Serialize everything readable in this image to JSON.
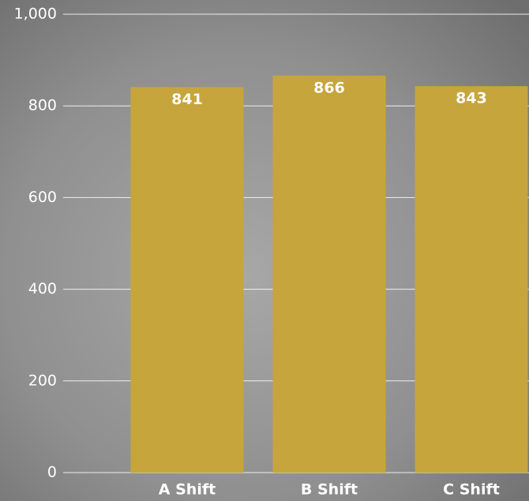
{
  "chart_data": {
    "type": "bar",
    "categories": [
      "A Shift",
      "B Shift",
      "C Shift"
    ],
    "values": [
      841,
      866,
      843
    ],
    "color": "#c6a53d",
    "ylim": [
      0,
      1000
    ],
    "yticks": [
      0,
      200,
      400,
      600,
      800,
      {
        "value": 1000,
        "label": "1,000"
      }
    ],
    "grid": true
  }
}
